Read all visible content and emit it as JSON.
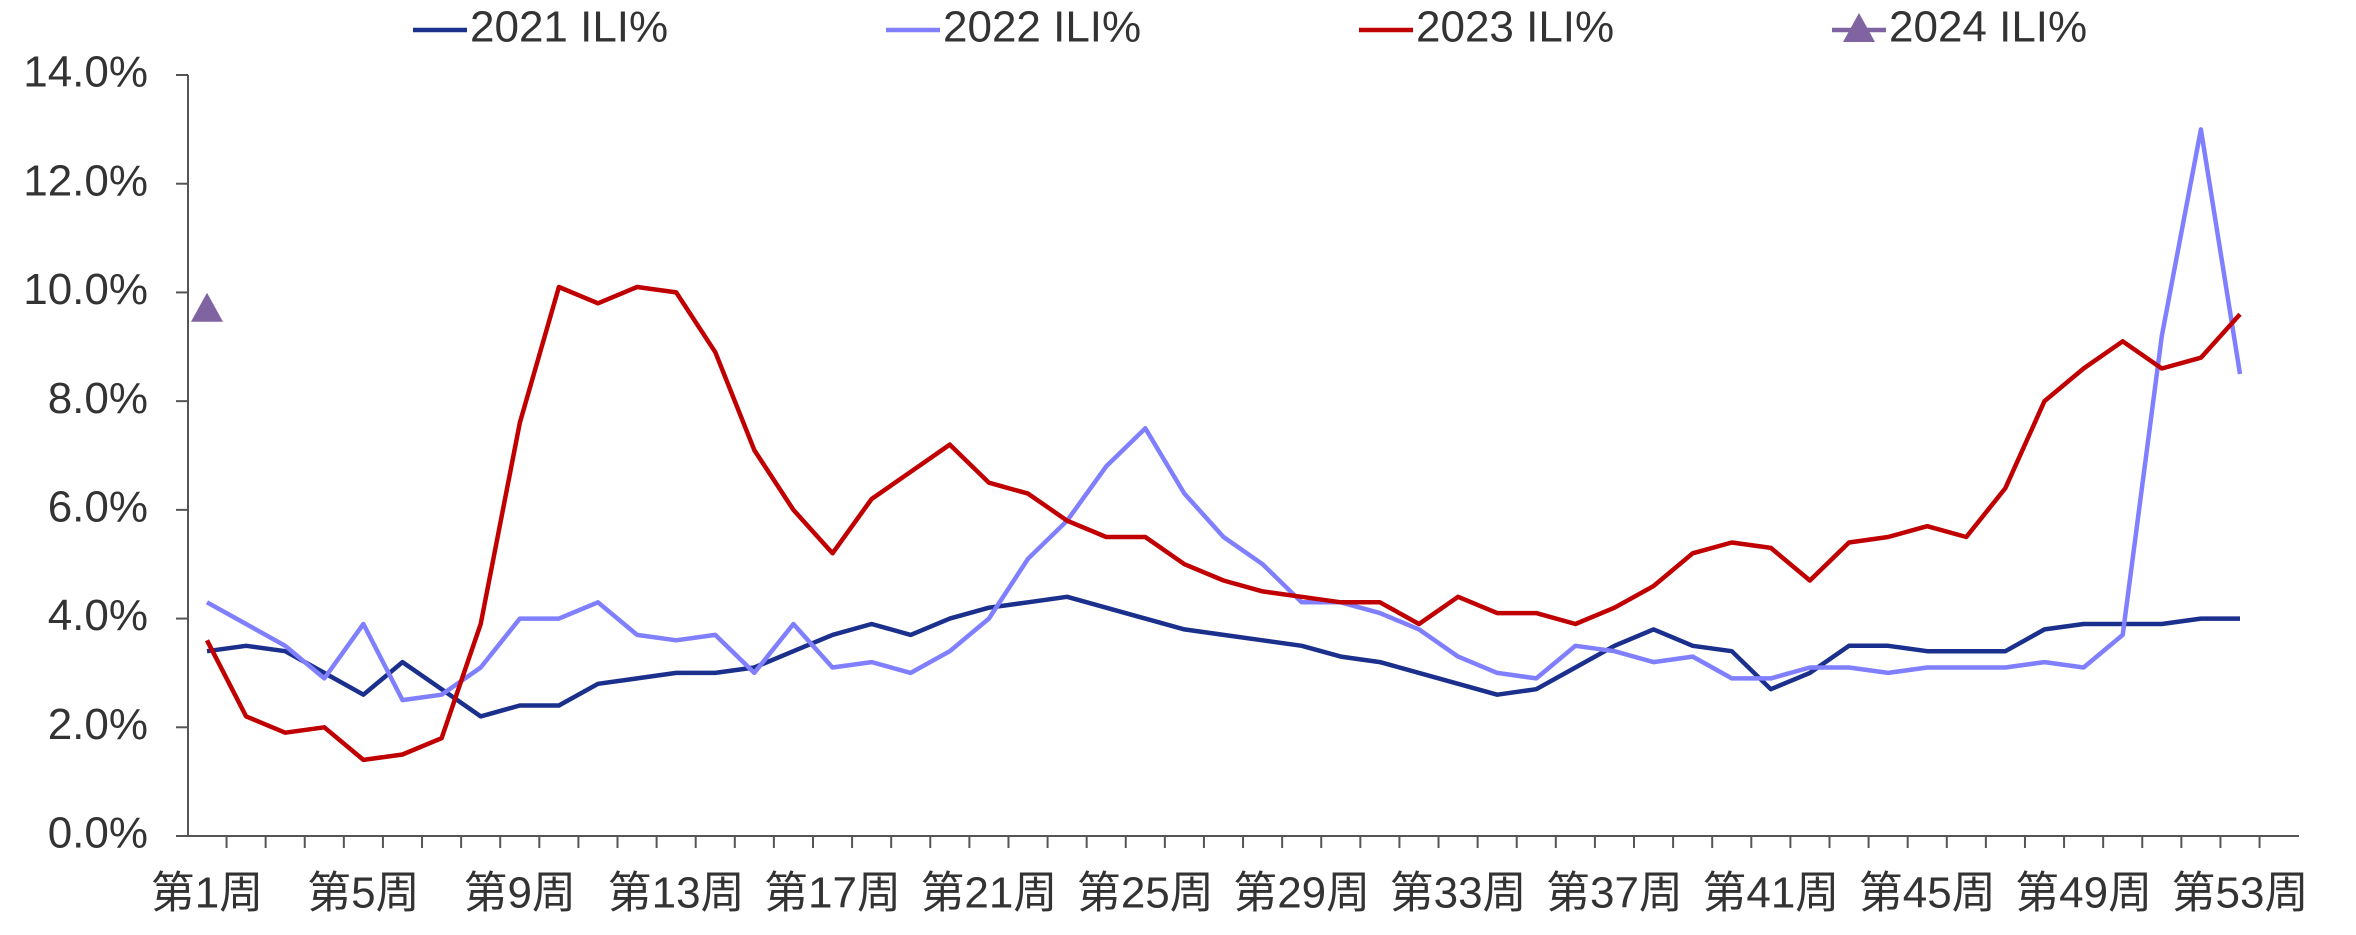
{
  "chart_data": {
    "type": "line",
    "categories": [
      "第1周",
      null,
      null,
      null,
      "第5周",
      null,
      null,
      null,
      "第9周",
      null,
      null,
      null,
      "第13周",
      null,
      null,
      null,
      "第17周",
      null,
      null,
      null,
      "第21周",
      null,
      null,
      null,
      "第25周",
      null,
      null,
      null,
      "第29周",
      null,
      null,
      null,
      "第33周",
      null,
      null,
      null,
      "第37周",
      null,
      null,
      null,
      "第41周",
      null,
      null,
      null,
      "第45周",
      null,
      null,
      null,
      "第49周",
      null,
      null,
      null,
      "第53周"
    ],
    "series": [
      {
        "name": "2021 ILI%",
        "color": "#1b2f8c",
        "values": [
          3.4,
          3.5,
          3.4,
          3.0,
          2.6,
          3.2,
          2.7,
          2.2,
          2.4,
          2.4,
          2.8,
          2.9,
          3.0,
          3.0,
          3.1,
          3.4,
          3.7,
          3.9,
          3.7,
          4.0,
          4.2,
          4.3,
          4.4,
          4.2,
          4.0,
          3.8,
          3.7,
          3.6,
          3.5,
          3.3,
          3.2,
          3.0,
          2.8,
          2.6,
          2.7,
          3.1,
          3.5,
          3.8,
          3.5,
          3.4,
          2.7,
          3.0,
          3.5,
          3.5,
          3.4,
          3.4,
          3.4,
          3.8,
          3.9,
          3.9,
          3.9,
          4.0,
          4.0
        ]
      },
      {
        "name": "2022 ILI%",
        "color": "#7f7fff",
        "values": [
          4.3,
          3.9,
          3.5,
          2.9,
          3.9,
          2.5,
          2.6,
          3.1,
          4.0,
          4.0,
          4.3,
          3.7,
          3.6,
          3.7,
          3.0,
          3.9,
          3.1,
          3.2,
          3.0,
          3.4,
          4.0,
          5.1,
          5.8,
          6.8,
          7.5,
          6.3,
          5.5,
          5.0,
          4.3,
          4.3,
          4.1,
          3.8,
          3.3,
          3.0,
          2.9,
          3.5,
          3.4,
          3.2,
          3.3,
          2.9,
          2.9,
          3.1,
          3.1,
          3.0,
          3.1,
          3.1,
          3.1,
          3.2,
          3.1,
          3.7,
          9.2,
          13.0,
          8.5
        ]
      },
      {
        "name": "2023 ILI%",
        "color": "#c00000",
        "values": [
          3.6,
          2.2,
          1.9,
          2.0,
          1.4,
          1.5,
          1.8,
          3.9,
          7.6,
          10.1,
          9.8,
          10.1,
          10.0,
          8.9,
          7.1,
          6.0,
          5.2,
          6.2,
          6.7,
          7.2,
          6.5,
          6.3,
          5.8,
          5.5,
          5.5,
          5.0,
          4.7,
          4.5,
          4.4,
          4.3,
          4.3,
          3.9,
          4.4,
          4.1,
          4.1,
          3.9,
          4.2,
          4.6,
          5.2,
          5.4,
          5.3,
          4.7,
          5.4,
          5.5,
          5.7,
          5.5,
          6.4,
          8.0,
          8.6,
          9.1,
          8.6,
          8.8,
          9.6
        ]
      },
      {
        "name": "2024 ILI%",
        "color": "#8064a2",
        "marker": "triangle",
        "values": [
          9.7,
          null,
          null,
          null,
          null,
          null,
          null,
          null,
          null,
          null,
          null,
          null,
          null,
          null,
          null,
          null,
          null,
          null,
          null,
          null,
          null,
          null,
          null,
          null,
          null,
          null,
          null,
          null,
          null,
          null,
          null,
          null,
          null,
          null,
          null,
          null,
          null,
          null,
          null,
          null,
          null,
          null,
          null,
          null,
          null,
          null,
          null,
          null,
          null,
          null,
          null,
          null,
          null
        ]
      }
    ],
    "ylim": [
      0,
      14
    ],
    "yticks": [
      {
        "value": 0,
        "label": "0.0%"
      },
      {
        "value": 2,
        "label": "2.0%"
      },
      {
        "value": 4,
        "label": "4.0%"
      },
      {
        "value": 6,
        "label": "6.0%"
      },
      {
        "value": 8,
        "label": "8.0%"
      },
      {
        "value": 10,
        "label": "10.0%"
      },
      {
        "value": 12,
        "label": "12.0%"
      },
      {
        "value": 14,
        "label": "14.0%"
      }
    ],
    "legend": "top"
  }
}
